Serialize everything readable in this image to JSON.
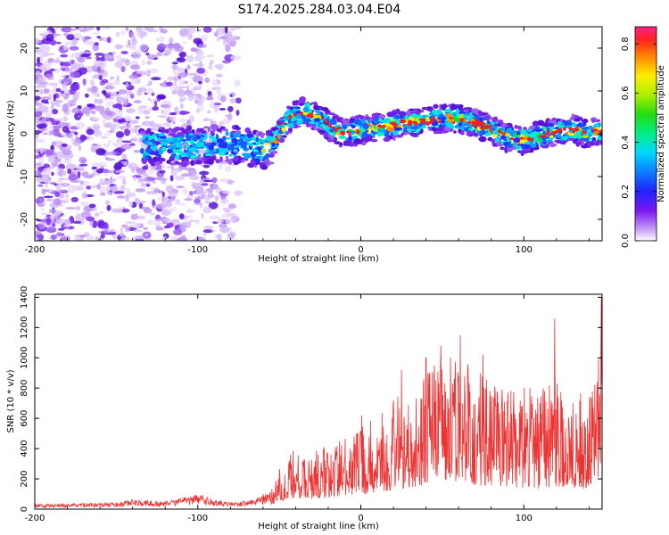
{
  "figure_title": "S174.2025.284.03.04.E04",
  "colors": {
    "heat_trace": "#ee2222",
    "snr_line": "#ee3333",
    "axis": "#000000"
  },
  "chart_data": [
    {
      "type": "heatmap",
      "title": "S174.2025.284.03.04.E04",
      "xlabel": "Height of straight line (km)",
      "ylabel": "Frequency (Hz)",
      "xlim": [
        -200,
        148
      ],
      "ylim": [
        -25,
        25
      ],
      "x_ticks": [
        -200,
        -100,
        0,
        100
      ],
      "x_tick_labels": [
        "-200",
        "-100",
        "0",
        "100"
      ],
      "y_ticks": [
        -20,
        -10,
        0,
        10,
        20
      ],
      "y_tick_labels": [
        "-20",
        "-10",
        "0",
        "10",
        "20"
      ],
      "ridge": {
        "x": [
          -130,
          -110,
          -95,
          -80,
          -70,
          -60,
          -55,
          -50,
          -45,
          -40,
          -35,
          -30,
          -25,
          -20,
          -15,
          -10,
          -5,
          0,
          10,
          20,
          30,
          40,
          50,
          60,
          70,
          80,
          90,
          100,
          110,
          120,
          130,
          140,
          148
        ],
        "y": [
          -3,
          -3,
          -2.5,
          -2.5,
          -3,
          -4,
          -3,
          0,
          3,
          4.5,
          5,
          4.5,
          3.5,
          2,
          1,
          0,
          0.5,
          1,
          1.5,
          2,
          2.5,
          3,
          3.5,
          3.5,
          2.5,
          1,
          -1,
          -1.5,
          -0.5,
          0.5,
          1,
          0,
          1
        ]
      },
      "colorbar": {
        "label": "Normalized spectral amplitude",
        "range": [
          0.0,
          0.87
        ],
        "ticks": [
          0.0,
          0.2,
          0.4,
          0.6,
          0.8
        ],
        "tick_labels": [
          "0.0",
          "0.2",
          "0.4",
          "0.6",
          "0.8"
        ]
      }
    },
    {
      "type": "line",
      "xlabel": "Height of straight line (km)",
      "ylabel": "SNR (10 * v/v)",
      "xlim": [
        -200,
        148
      ],
      "ylim": [
        0,
        1420
      ],
      "x_ticks": [
        -200,
        -100,
        0,
        100
      ],
      "x_tick_labels": [
        "-200",
        "-100",
        "0",
        "100"
      ],
      "y_ticks": [
        0,
        200,
        400,
        600,
        800,
        1000,
        1200,
        1400
      ],
      "y_tick_labels": [
        "0",
        "200",
        "400",
        "600",
        "800",
        "1000",
        "1200",
        "1400"
      ],
      "series": [
        {
          "name": "SNR",
          "envelope_x": [
            -200,
            -150,
            -140,
            -120,
            -100,
            -90,
            -80,
            -65,
            -55,
            -50,
            -45,
            -40,
            -30,
            -20,
            -10,
            0,
            10,
            20,
            30,
            40,
            50,
            60,
            70,
            80,
            90,
            100,
            110,
            120,
            130,
            140,
            148
          ],
          "envelope_y": [
            30,
            40,
            60,
            45,
            90,
            60,
            40,
            60,
            120,
            200,
            260,
            300,
            260,
            300,
            330,
            380,
            450,
            500,
            560,
            640,
            680,
            720,
            640,
            600,
            580,
            560,
            540,
            600,
            560,
            520,
            900
          ],
          "peaks_x": [
            0.5,
            25,
            40,
            49,
            55,
            61,
            75,
            119,
            145,
            147.5
          ],
          "peaks_y": [
            620,
            920,
            1000,
            1080,
            1000,
            1150,
            1020,
            1260,
            840,
            1400
          ]
        }
      ]
    }
  ]
}
